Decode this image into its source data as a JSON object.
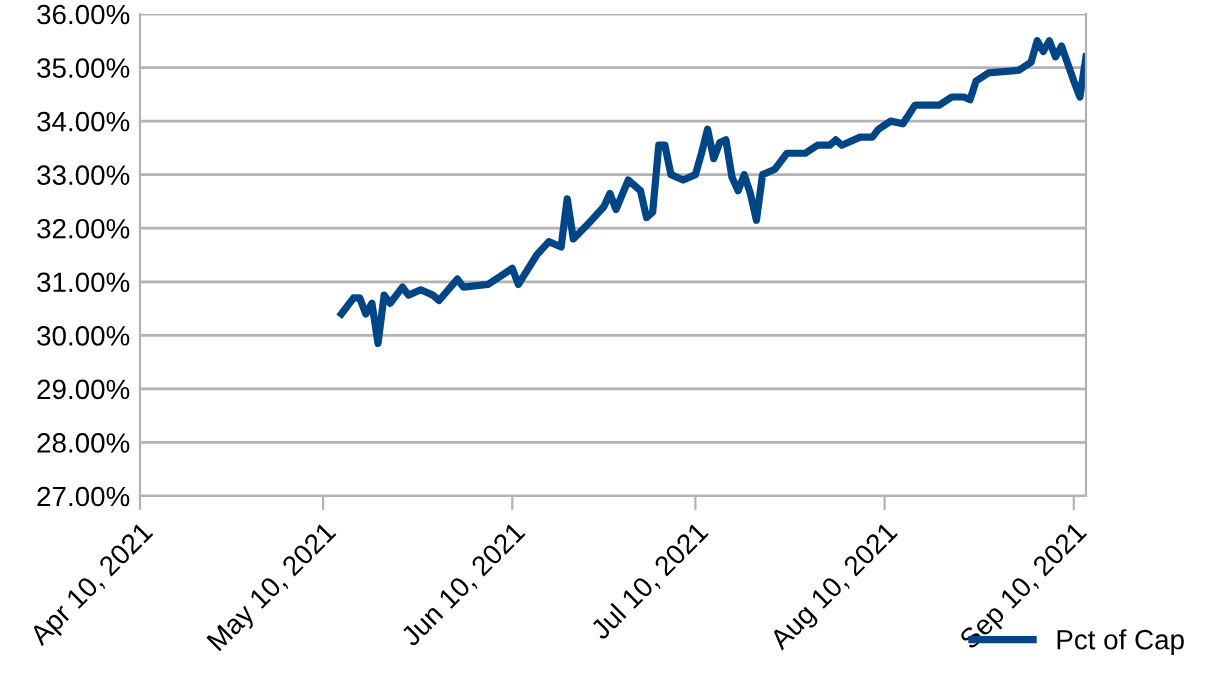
{
  "chart_data": {
    "type": "line",
    "x": [
      "2021-05-13",
      "2021-05-15",
      "2021-05-16",
      "2021-05-17",
      "2021-05-18",
      "2021-05-19",
      "2021-05-20",
      "2021-05-21",
      "2021-05-23",
      "2021-05-24",
      "2021-05-26",
      "2021-05-28",
      "2021-05-29",
      "2021-06-01",
      "2021-06-02",
      "2021-06-06",
      "2021-06-08",
      "2021-06-10",
      "2021-06-11",
      "2021-06-14",
      "2021-06-16",
      "2021-06-18",
      "2021-06-19",
      "2021-06-20",
      "2021-06-23",
      "2021-06-25",
      "2021-06-26",
      "2021-06-27",
      "2021-06-29",
      "2021-07-01",
      "2021-07-02",
      "2021-07-03",
      "2021-07-04",
      "2021-07-05",
      "2021-07-06",
      "2021-07-08",
      "2021-07-10",
      "2021-07-11",
      "2021-07-12",
      "2021-07-13",
      "2021-07-14",
      "2021-07-15",
      "2021-07-16",
      "2021-07-17",
      "2021-07-18",
      "2021-07-19",
      "2021-07-20",
      "2021-07-21",
      "2021-07-23",
      "2021-07-25",
      "2021-07-28",
      "2021-07-30",
      "2021-08-01",
      "2021-08-02",
      "2021-08-03",
      "2021-08-06",
      "2021-08-08",
      "2021-08-09",
      "2021-08-11",
      "2021-08-13",
      "2021-08-15",
      "2021-08-19",
      "2021-08-21",
      "2021-08-23",
      "2021-08-24",
      "2021-08-25",
      "2021-08-27",
      "2021-09-01",
      "2021-09-03",
      "2021-09-04",
      "2021-09-05",
      "2021-09-06",
      "2021-09-07",
      "2021-09-08",
      "2021-09-10",
      "2021-09-11",
      "2021-09-12"
    ],
    "series": [
      {
        "name": "Pct of Cap",
        "color": "#004586",
        "values": [
          30.4,
          30.7,
          30.7,
          30.4,
          30.6,
          29.85,
          30.75,
          30.6,
          30.9,
          30.75,
          30.85,
          30.75,
          30.65,
          31.05,
          30.9,
          30.95,
          31.1,
          31.25,
          30.95,
          31.5,
          31.75,
          31.65,
          32.55,
          31.8,
          32.15,
          32.4,
          32.65,
          32.35,
          32.9,
          32.7,
          32.2,
          32.3,
          33.55,
          33.55,
          33.0,
          32.9,
          33.0,
          33.4,
          33.85,
          33.3,
          33.6,
          33.65,
          32.95,
          32.7,
          33.0,
          32.65,
          32.15,
          33.0,
          33.1,
          33.4,
          33.4,
          33.55,
          33.55,
          33.65,
          33.55,
          33.7,
          33.7,
          33.85,
          34.0,
          33.95,
          34.3,
          34.3,
          34.45,
          34.45,
          34.4,
          34.75,
          34.9,
          34.95,
          35.1,
          35.5,
          35.3,
          35.5,
          35.2,
          35.4,
          34.75,
          34.45,
          35.2
        ]
      }
    ],
    "xlim": [
      "2021-04-10",
      "2021-09-12"
    ],
    "xticks": [
      {
        "value": "2021-04-10",
        "label": "Apr 10, 2021"
      },
      {
        "value": "2021-05-10",
        "label": "May 10, 2021"
      },
      {
        "value": "2021-06-10",
        "label": "Jun 10, 2021"
      },
      {
        "value": "2021-07-10",
        "label": "Jul 10, 2021"
      },
      {
        "value": "2021-08-10",
        "label": "Aug 10, 2021"
      },
      {
        "value": "2021-09-10",
        "label": "Sep 10, 2021"
      }
    ],
    "ylim": [
      27,
      36
    ],
    "yticks": [
      {
        "value": 27,
        "label": "27.00%"
      },
      {
        "value": 28,
        "label": "28.00%"
      },
      {
        "value": 29,
        "label": "29.00%"
      },
      {
        "value": 30,
        "label": "30.00%"
      },
      {
        "value": 31,
        "label": "31.00%"
      },
      {
        "value": 32,
        "label": "32.00%"
      },
      {
        "value": 33,
        "label": "33.00%"
      },
      {
        "value": 34,
        "label": "34.00%"
      },
      {
        "value": 35,
        "label": "35.00%"
      },
      {
        "value": 36,
        "label": "36.00%"
      }
    ],
    "grid": "y",
    "legend": "bottom right"
  }
}
